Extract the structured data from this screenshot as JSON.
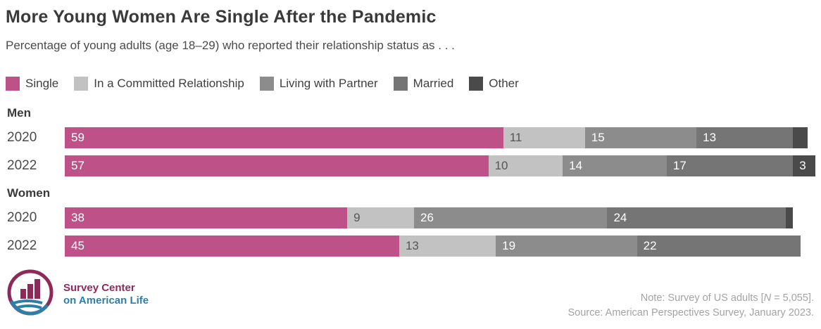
{
  "title": "More Young Women Are Single After the Pandemic",
  "subtitle": "Percentage of young adults (age 18–29) who reported their relationship status as . . .",
  "colors": {
    "single": "#bf5189",
    "committed": "#c2c2c2",
    "living": "#8c8c8c",
    "married": "#757575",
    "other": "#4a4a4a",
    "label_on_dark": "#ffffff",
    "label_on_light": "#555555"
  },
  "legend": [
    {
      "label": "Single",
      "color_key": "single"
    },
    {
      "label": "In a Committed Relationship",
      "color_key": "committed"
    },
    {
      "label": "Living with Partner",
      "color_key": "living"
    },
    {
      "label": "Married",
      "color_key": "married"
    },
    {
      "label": "Other",
      "color_key": "other"
    }
  ],
  "chart_data": {
    "type": "bar",
    "orientation": "horizontal-stacked",
    "unit": "percent",
    "xmax": 101,
    "series": [
      "Single",
      "In a Committed Relationship",
      "Living with Partner",
      "Married",
      "Other"
    ],
    "series_color_keys": [
      "single",
      "committed",
      "living",
      "married",
      "other"
    ],
    "groups": [
      {
        "label": "Men",
        "rows": [
          {
            "year": "2020",
            "values": [
              59,
              11,
              15,
              13,
              2
            ],
            "labels": [
              "59",
              "11",
              "15",
              "13",
              ""
            ]
          },
          {
            "year": "2022",
            "values": [
              57,
              10,
              14,
              17,
              3
            ],
            "labels": [
              "57",
              "10",
              "14",
              "17",
              "3"
            ]
          }
        ]
      },
      {
        "label": "Women",
        "rows": [
          {
            "year": "2020",
            "values": [
              38,
              9,
              26,
              24,
              1
            ],
            "labels": [
              "38",
              "9",
              "26",
              "24",
              ""
            ]
          },
          {
            "year": "2022",
            "values": [
              45,
              13,
              19,
              22,
              0
            ],
            "labels": [
              "45",
              "13",
              "19",
              "22",
              ""
            ]
          }
        ]
      }
    ]
  },
  "footer": {
    "brand_line1": "Survey Center",
    "brand_line2": "on American Life",
    "note_prefix": "Note: Survey of US adults [",
    "note_nvar": "N",
    "note_suffix": " = 5,055].",
    "source": "Source: American Perspectives Survey, January 2023."
  }
}
